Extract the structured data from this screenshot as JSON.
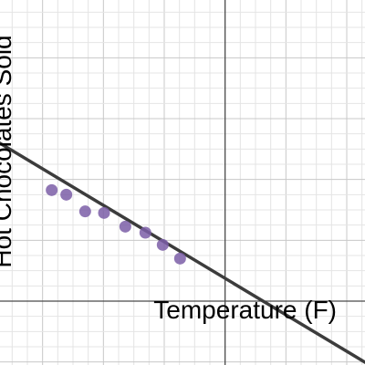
{
  "chart_data": {
    "type": "scatter",
    "xlabel": "Temperature (F)",
    "ylabel": "Hot Chocolates Sold",
    "xlim": [
      -7.4,
      4.6
    ],
    "ylim": [
      -2.1,
      9.9
    ],
    "grid": true,
    "points": [
      {
        "x": -5.7,
        "y": 3.65
      },
      {
        "x": -5.22,
        "y": 3.5
      },
      {
        "x": -4.6,
        "y": 2.95
      },
      {
        "x": -3.98,
        "y": 2.9
      },
      {
        "x": -3.28,
        "y": 2.45
      },
      {
        "x": -2.62,
        "y": 2.25
      },
      {
        "x": -2.05,
        "y": 1.85
      },
      {
        "x": -1.48,
        "y": 1.4
      }
    ],
    "trend_line": {
      "slope": -0.6,
      "intercept": 0.75
    },
    "colors": {
      "points": "#7b5ea7",
      "line": "#3c3c3c",
      "grid": "#d9d9d9",
      "axis": "#4a4a4a"
    }
  }
}
